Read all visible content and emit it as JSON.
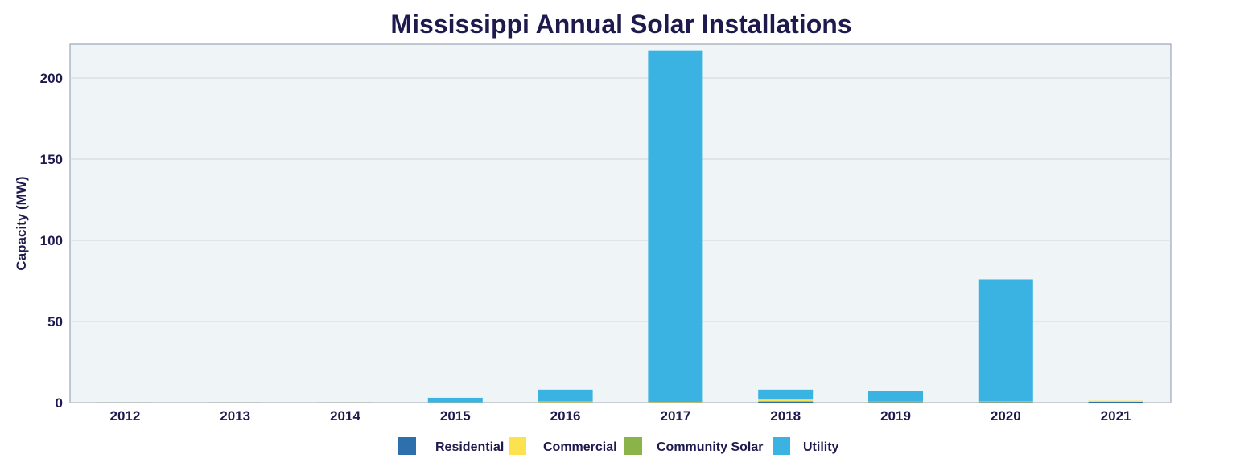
{
  "chart_data": {
    "type": "bar",
    "stacked": true,
    "title": "Mississippi Annual Solar Installations",
    "xlabel": "",
    "ylabel": "Capacity (MW)",
    "ylim": [
      0,
      221
    ],
    "yticks": [
      0,
      50,
      100,
      150,
      200
    ],
    "grid": true,
    "legend_position": "bottom",
    "categories": [
      "2012",
      "2013",
      "2014",
      "2015",
      "2016",
      "2017",
      "2018",
      "2019",
      "2020",
      "2021"
    ],
    "series": [
      {
        "name": "Residential",
        "color": "#2e6fad",
        "values": [
          0.05,
          0.05,
          0.05,
          0.1,
          0.2,
          0.2,
          0.7,
          0.3,
          0.3,
          0.5
        ]
      },
      {
        "name": "Commercial",
        "color": "#fde24f",
        "values": [
          0.05,
          0.05,
          0.05,
          0.1,
          0.5,
          0.3,
          1.2,
          0.3,
          0.4,
          0.7
        ]
      },
      {
        "name": "Community Solar",
        "color": "#8ab34a",
        "values": [
          0,
          0,
          0,
          0,
          0,
          0,
          0,
          0,
          0,
          0
        ]
      },
      {
        "name": "Utility",
        "color": "#3ab3e3",
        "values": [
          0,
          0,
          0,
          2.8,
          7.3,
          216.5,
          6.1,
          6.7,
          75.3,
          0
        ]
      }
    ]
  }
}
